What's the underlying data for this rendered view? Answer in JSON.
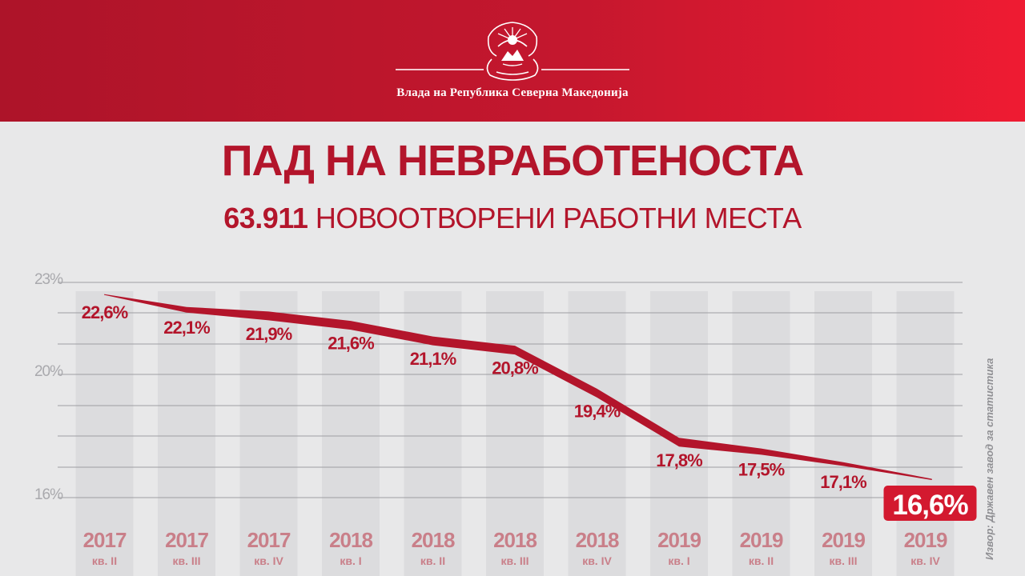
{
  "header": {
    "government_name": "Влада на Република Северна Македонија"
  },
  "title": "ПАД НА НЕВРАБОТЕНОСТА",
  "subtitle": {
    "number": "63.911",
    "text": "НОВООТВОРЕНИ РАБОТНИ МЕСТА"
  },
  "source": "Извор: Државен завод за статистика",
  "colors": {
    "brand_red": "#b3152b",
    "header_dark": "#ad1429",
    "header_light": "#ef1b32",
    "column_bg": "#dcdcde",
    "category_label": "#c97f89"
  },
  "chart_data": {
    "type": "line",
    "categories": [
      {
        "year": "2017",
        "quarter": "кв. II"
      },
      {
        "year": "2017",
        "quarter": "кв. III"
      },
      {
        "year": "2017",
        "quarter": "кв. IV"
      },
      {
        "year": "2018",
        "quarter": "кв. I"
      },
      {
        "year": "2018",
        "quarter": "кв. II"
      },
      {
        "year": "2018",
        "quarter": "кв. III"
      },
      {
        "year": "2018",
        "quarter": "кв. IV"
      },
      {
        "year": "2019",
        "quarter": "кв. I"
      },
      {
        "year": "2019",
        "quarter": "кв. II"
      },
      {
        "year": "2019",
        "quarter": "кв. III"
      },
      {
        "year": "2019",
        "quarter": "кв. IV"
      }
    ],
    "values": [
      22.6,
      22.1,
      21.9,
      21.6,
      21.1,
      20.8,
      19.4,
      17.8,
      17.5,
      17.1,
      16.6
    ],
    "value_labels": [
      "22,6%",
      "22,1%",
      "21,9%",
      "21,6%",
      "21,1%",
      "20,8%",
      "19,4%",
      "17,8%",
      "17,5%",
      "17,1%",
      "16,6%"
    ],
    "y_ticks": [
      {
        "value": 23,
        "label": "23%"
      },
      {
        "value": 20,
        "label": "20%"
      },
      {
        "value": 16,
        "label": "16%"
      }
    ],
    "gridlines": [
      23,
      22,
      21,
      20,
      19,
      18,
      17,
      16
    ],
    "ylim": [
      16,
      23
    ],
    "highlight_index": 10,
    "grid": true
  }
}
